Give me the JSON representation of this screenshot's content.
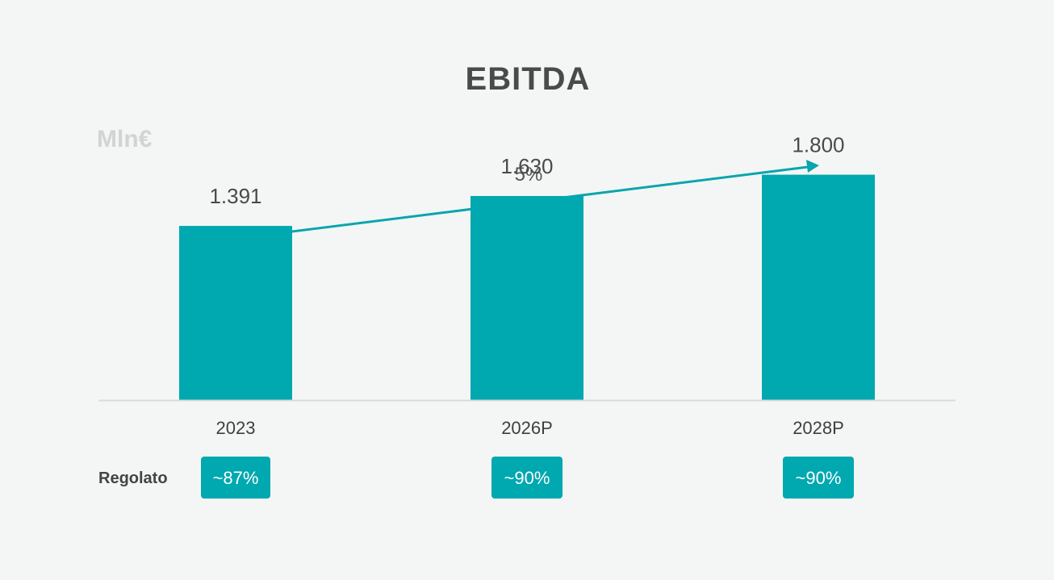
{
  "chart_data": {
    "type": "bar",
    "title": "EBITDA",
    "unit": "Mln€",
    "categories": [
      "2023",
      "2026P",
      "2028P"
    ],
    "values": [
      1391,
      1630,
      1800
    ],
    "value_labels": [
      "1.391",
      "1.630",
      "1.800"
    ],
    "ylim": [
      0,
      2100
    ],
    "cagr_label": "5%",
    "row_label": "Regolato",
    "row_values": [
      "~87%",
      "~90%",
      "~90%"
    ],
    "grid": false,
    "legend": "none"
  },
  "colors": {
    "bar": "#00a8b0",
    "arrow": "#0aa5ad",
    "badge": "#00a8b0",
    "axis": "#d8dcdc",
    "background": "#f4f6f6"
  }
}
